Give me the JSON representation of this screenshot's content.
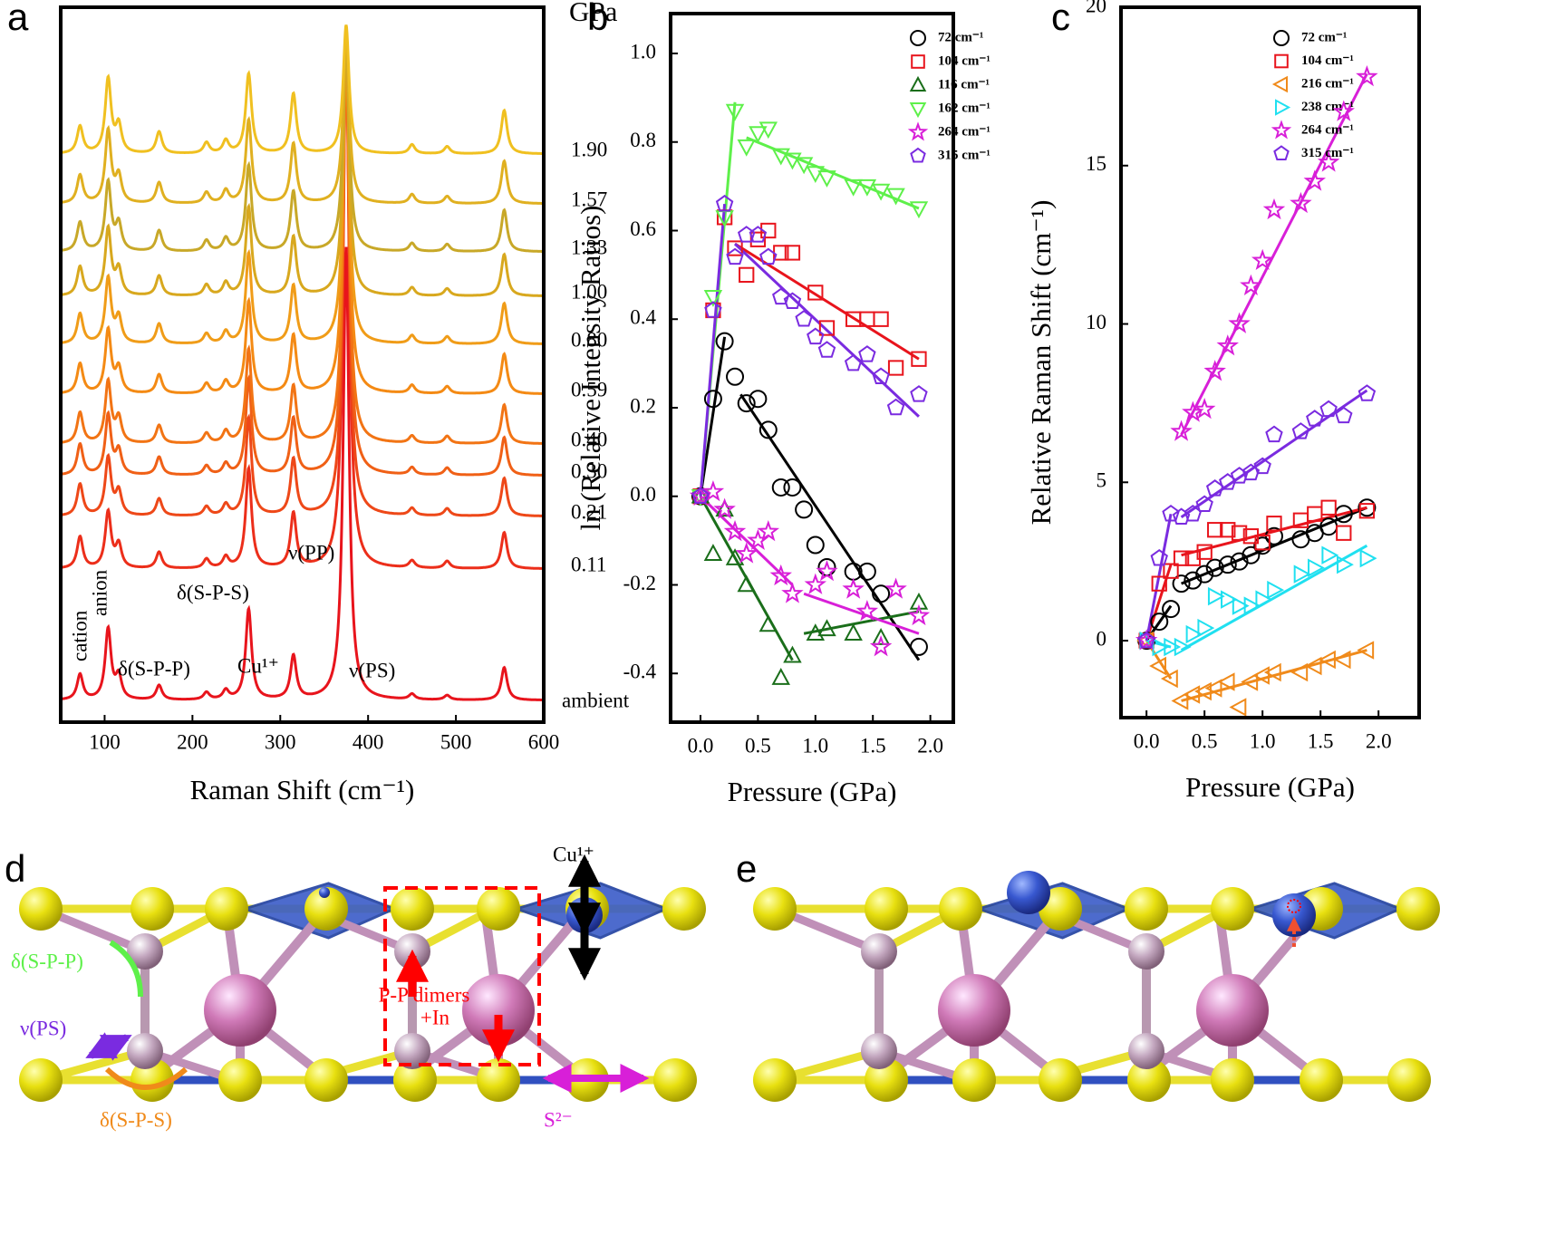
{
  "panel_labels": [
    "a",
    "b",
    "c",
    "d",
    "e"
  ],
  "chart_data": [
    {
      "type": "line",
      "xlabel": "Raman Shift (cm⁻¹)",
      "xlim": [
        50,
        600
      ],
      "xticks": [
        100,
        200,
        300,
        400,
        500,
        600
      ],
      "legend_title": "GPa",
      "x": [
        72,
        104,
        116,
        162,
        216,
        238,
        264,
        315,
        375,
        450,
        490,
        555
      ],
      "series": [
        {
          "name": "ambient",
          "color": "#e8141c",
          "values": [
            28,
            78,
            25,
            16,
            8,
            10,
            100,
            48,
            500,
            6,
            5,
            36
          ]
        },
        {
          "name": "0.11",
          "color": "#ec2e1a",
          "values": [
            35,
            62,
            25,
            18,
            10,
            12,
            110,
            60,
            583,
            8,
            8,
            40
          ]
        },
        {
          "name": "0.21",
          "color": "#ee4818",
          "values": [
            35,
            64,
            26,
            19,
            10,
            12,
            108,
            62,
            525,
            8,
            8,
            42
          ]
        },
        {
          "name": "0.30",
          "color": "#f06016",
          "values": [
            34,
            66,
            26,
            20,
            10,
            12,
            106,
            62,
            483,
            8,
            8,
            42
          ]
        },
        {
          "name": "0.40",
          "color": "#f27414",
          "values": [
            34,
            68,
            27,
            20,
            11,
            13,
            104,
            63,
            448,
            8,
            8,
            43
          ]
        },
        {
          "name": "0.59",
          "color": "#f48a14",
          "values": [
            33,
            70,
            27,
            21,
            11,
            13,
            102,
            64,
            395,
            9,
            8,
            44
          ]
        },
        {
          "name": "0.80",
          "color": "#f09c18",
          "values": [
            33,
            72,
            28,
            22,
            11,
            13,
            100,
            64,
            340,
            9,
            8,
            45
          ]
        },
        {
          "name": "1.00",
          "color": "#d8a81e",
          "values": [
            32,
            74,
            28,
            22,
            12,
            14,
            98,
            65,
            289,
            9,
            8,
            46
          ]
        },
        {
          "name": "1.33",
          "color": "#c8a828",
          "values": [
            32,
            76,
            29,
            23,
            12,
            14,
            95,
            66,
            242,
            9,
            8,
            46
          ]
        },
        {
          "name": "1.57",
          "color": "#e0b020",
          "values": [
            31,
            80,
            29,
            23,
            12,
            14,
            92,
            66,
            191,
            10,
            8,
            47
          ]
        },
        {
          "name": "1.90",
          "color": "#f0c020",
          "values": [
            30,
            82,
            30,
            24,
            12,
            14,
            88,
            66,
            142,
            10,
            8,
            48
          ]
        }
      ],
      "annotations": [
        "cation",
        "anion",
        "δ(S-P-P)",
        "δ(S-P-S)",
        "Cu¹⁺",
        "ν(PP)",
        "ν(PS)"
      ]
    },
    {
      "type": "scatter",
      "xlabel": "Pressure (GPa)",
      "ylabel": "ln (Relative Intensity Ratios)",
      "xlim": [
        -0.26,
        2.2
      ],
      "ylim": [
        -0.51,
        1.09
      ],
      "xticks": [
        {
          "value": 0,
          "label": "0.0"
        },
        0.5,
        {
          "value": 1,
          "label": "1.0"
        },
        1.5,
        {
          "value": 2,
          "label": "2.0"
        }
      ],
      "yticks": [
        -0.4,
        -0.2,
        {
          "value": 0,
          "label": "0.0"
        },
        0.2,
        0.4,
        0.6,
        0.8,
        {
          "value": 1,
          "label": "1.0"
        }
      ],
      "x": [
        0,
        0.11,
        0.21,
        0.3,
        0.4,
        0.5,
        0.59,
        0.7,
        0.8,
        0.9,
        1.0,
        1.1,
        1.33,
        1.45,
        1.57,
        1.7,
        1.9
      ],
      "series": [
        {
          "name": "72 cm⁻¹",
          "color": "#000000",
          "marker": "circle",
          "values": [
            0,
            0.22,
            0.35,
            0.27,
            0.21,
            0.22,
            0.15,
            0.02,
            0.02,
            -0.03,
            -0.11,
            -0.16,
            -0.17,
            -0.17,
            -0.22,
            null,
            -0.34
          ],
          "fits": [
            {
              "x": [
                0,
                0.21
              ],
              "y": [
                0,
                0.36
              ]
            },
            {
              "x": [
                0.35,
                1.9
              ],
              "y": [
                0.23,
                -0.37
              ]
            }
          ]
        },
        {
          "name": "104 cm⁻¹",
          "color": "#e8141c",
          "marker": "square",
          "values": [
            0,
            0.42,
            0.63,
            0.56,
            0.5,
            0.58,
            0.6,
            0.55,
            0.55,
            null,
            0.46,
            0.38,
            0.4,
            0.4,
            0.4,
            0.29,
            0.31
          ],
          "fits": [
            {
              "x": [
                0.3,
                1.9
              ],
              "y": [
                0.57,
                0.31
              ]
            }
          ]
        },
        {
          "name": "116 cm⁻¹",
          "color": "#1a6e1a",
          "marker": "triangle-up",
          "values": [
            0,
            -0.13,
            -0.03,
            -0.14,
            -0.2,
            null,
            -0.29,
            -0.41,
            -0.36,
            null,
            -0.31,
            -0.3,
            -0.31,
            null,
            -0.32,
            null,
            -0.24
          ],
          "fits": [
            {
              "x": [
                0,
                0.8
              ],
              "y": [
                0,
                -0.37
              ]
            },
            {
              "x": [
                0.9,
                1.9
              ],
              "y": [
                -0.31,
                -0.26
              ]
            }
          ]
        },
        {
          "name": "162 cm⁻¹",
          "color": "#5ef04a",
          "marker": "triangle-down",
          "values": [
            0,
            0.45,
            0.63,
            0.87,
            0.79,
            0.82,
            0.83,
            0.77,
            0.76,
            0.75,
            0.73,
            0.72,
            0.7,
            0.7,
            0.69,
            0.68,
            0.65
          ],
          "fits": [
            {
              "x": [
                0,
                0.3
              ],
              "y": [
                0,
                0.89
              ]
            },
            {
              "x": [
                0.4,
                1.9
              ],
              "y": [
                0.81,
                0.65
              ]
            }
          ]
        },
        {
          "name": "264 cm⁻¹",
          "color": "#d81fd8",
          "marker": "star",
          "values": [
            0,
            0.01,
            -0.03,
            -0.08,
            -0.13,
            -0.1,
            -0.08,
            -0.18,
            -0.22,
            null,
            -0.2,
            -0.17,
            -0.21,
            -0.26,
            -0.34,
            -0.21,
            -0.27
          ],
          "fits": [
            {
              "x": [
                0,
                0.8
              ],
              "y": [
                0,
                -0.2
              ]
            },
            {
              "x": [
                0.9,
                1.9
              ],
              "y": [
                -0.22,
                -0.31
              ]
            }
          ]
        },
        {
          "name": "315 cm⁻¹",
          "color": "#7a2be0",
          "marker": "pentagon",
          "values": [
            0,
            0.42,
            0.66,
            0.54,
            0.59,
            0.59,
            0.54,
            0.45,
            0.44,
            0.4,
            0.36,
            0.33,
            0.3,
            0.32,
            0.27,
            0.2,
            0.23
          ],
          "fits": [
            {
              "x": [
                0,
                0.21
              ],
              "y": [
                0,
                0.66
              ]
            },
            {
              "x": [
                0.3,
                1.9
              ],
              "y": [
                0.57,
                0.18
              ]
            }
          ]
        }
      ]
    },
    {
      "type": "scatter",
      "xlabel": "Pressure (GPa)",
      "ylabel": "Relative Raman Shift (cm⁻¹)",
      "xlim": [
        -0.22,
        2.35
      ],
      "ylim": [
        -2.43,
        20
      ],
      "xticks": [
        {
          "value": 0,
          "label": "0.0"
        },
        0.5,
        {
          "value": 1,
          "label": "1.0"
        },
        1.5,
        {
          "value": 2,
          "label": "2.0"
        }
      ],
      "yticks": [
        0,
        5,
        10,
        15,
        20
      ],
      "x": [
        0,
        0.11,
        0.21,
        0.3,
        0.4,
        0.5,
        0.59,
        0.7,
        0.8,
        0.9,
        1.0,
        1.1,
        1.33,
        1.45,
        1.57,
        1.7,
        1.9
      ],
      "series": [
        {
          "name": "72 cm⁻¹",
          "color": "#000000",
          "marker": "circle",
          "values": [
            0,
            0.6,
            1.0,
            1.8,
            1.9,
            2.1,
            2.3,
            2.4,
            2.5,
            2.7,
            3.0,
            3.3,
            3.2,
            3.4,
            3.6,
            4.0,
            4.2
          ],
          "fits": [
            {
              "x": [
                0,
                0.21
              ],
              "y": [
                0,
                1.1
              ]
            },
            {
              "x": [
                0.3,
                1.9
              ],
              "y": [
                1.8,
                4.2
              ]
            }
          ]
        },
        {
          "name": "104 cm⁻¹",
          "color": "#e8141c",
          "marker": "square",
          "values": [
            0,
            1.8,
            2.2,
            2.6,
            2.6,
            2.8,
            3.5,
            3.5,
            3.4,
            3.3,
            3.1,
            3.7,
            3.8,
            4.0,
            4.2,
            3.4,
            4.1
          ],
          "fits": [
            {
              "x": [
                0,
                0.21
              ],
              "y": [
                0,
                2.4
              ]
            },
            {
              "x": [
                0.3,
                1.9
              ],
              "y": [
                2.7,
                4.2
              ]
            }
          ]
        },
        {
          "name": "216 cm⁻¹",
          "color": "#f08a1a",
          "marker": "triangle-left",
          "values": [
            0,
            -0.8,
            -1.2,
            -1.9,
            -1.7,
            -1.6,
            -1.5,
            -1.3,
            -2.1,
            -1.3,
            -1.1,
            -1.0,
            -1.0,
            -0.8,
            -0.6,
            -0.6,
            -0.3
          ],
          "fits": [
            {
              "x": [
                0,
                0.21
              ],
              "y": [
                0,
                -1.2
              ]
            },
            {
              "x": [
                0.3,
                1.9
              ],
              "y": [
                -1.9,
                -0.3
              ]
            }
          ]
        },
        {
          "name": "238 cm⁻¹",
          "color": "#20e0f0",
          "marker": "triangle-right",
          "values": [
            0,
            -0.2,
            -0.2,
            -0.2,
            0.2,
            0.4,
            1.4,
            1.3,
            1.1,
            1.1,
            1.3,
            1.6,
            2.1,
            2.3,
            2.7,
            2.4,
            2.6
          ],
          "fits": [
            {
              "x": [
                0,
                0.21
              ],
              "y": [
                0,
                -0.2
              ]
            },
            {
              "x": [
                0.3,
                1.9
              ],
              "y": [
                -0.3,
                3.0
              ]
            }
          ]
        },
        {
          "name": "264 cm⁻¹",
          "color": "#d81fd8",
          "marker": "star",
          "values": [
            0,
            null,
            null,
            6.6,
            7.2,
            7.3,
            8.5,
            9.3,
            10.0,
            11.2,
            12.0,
            13.6,
            13.8,
            14.5,
            15.1,
            16.7,
            17.8
          ],
          "fits": [
            {
              "x": [
                0.3,
                1.9
              ],
              "y": [
                6.5,
                17.9
              ]
            }
          ]
        },
        {
          "name": "315 cm⁻¹",
          "color": "#7a2be0",
          "marker": "pentagon",
          "values": [
            0,
            2.6,
            4.0,
            3.9,
            4.0,
            4.3,
            4.8,
            5.0,
            5.2,
            5.3,
            5.5,
            6.5,
            6.6,
            7.0,
            7.3,
            7.1,
            7.8
          ],
          "fits": [
            {
              "x": [
                0,
                0.21
              ],
              "y": [
                0,
                4.0
              ]
            },
            {
              "x": [
                0.3,
                1.9
              ],
              "y": [
                3.9,
                7.9
              ]
            }
          ]
        }
      ]
    }
  ],
  "structure": {
    "labels": [
      "Cu¹⁺",
      "δ(S-P-P)",
      "ν(PS)",
      "δ(S-P-S)",
      "P-P dimers",
      "+In",
      "S²⁻"
    ]
  }
}
